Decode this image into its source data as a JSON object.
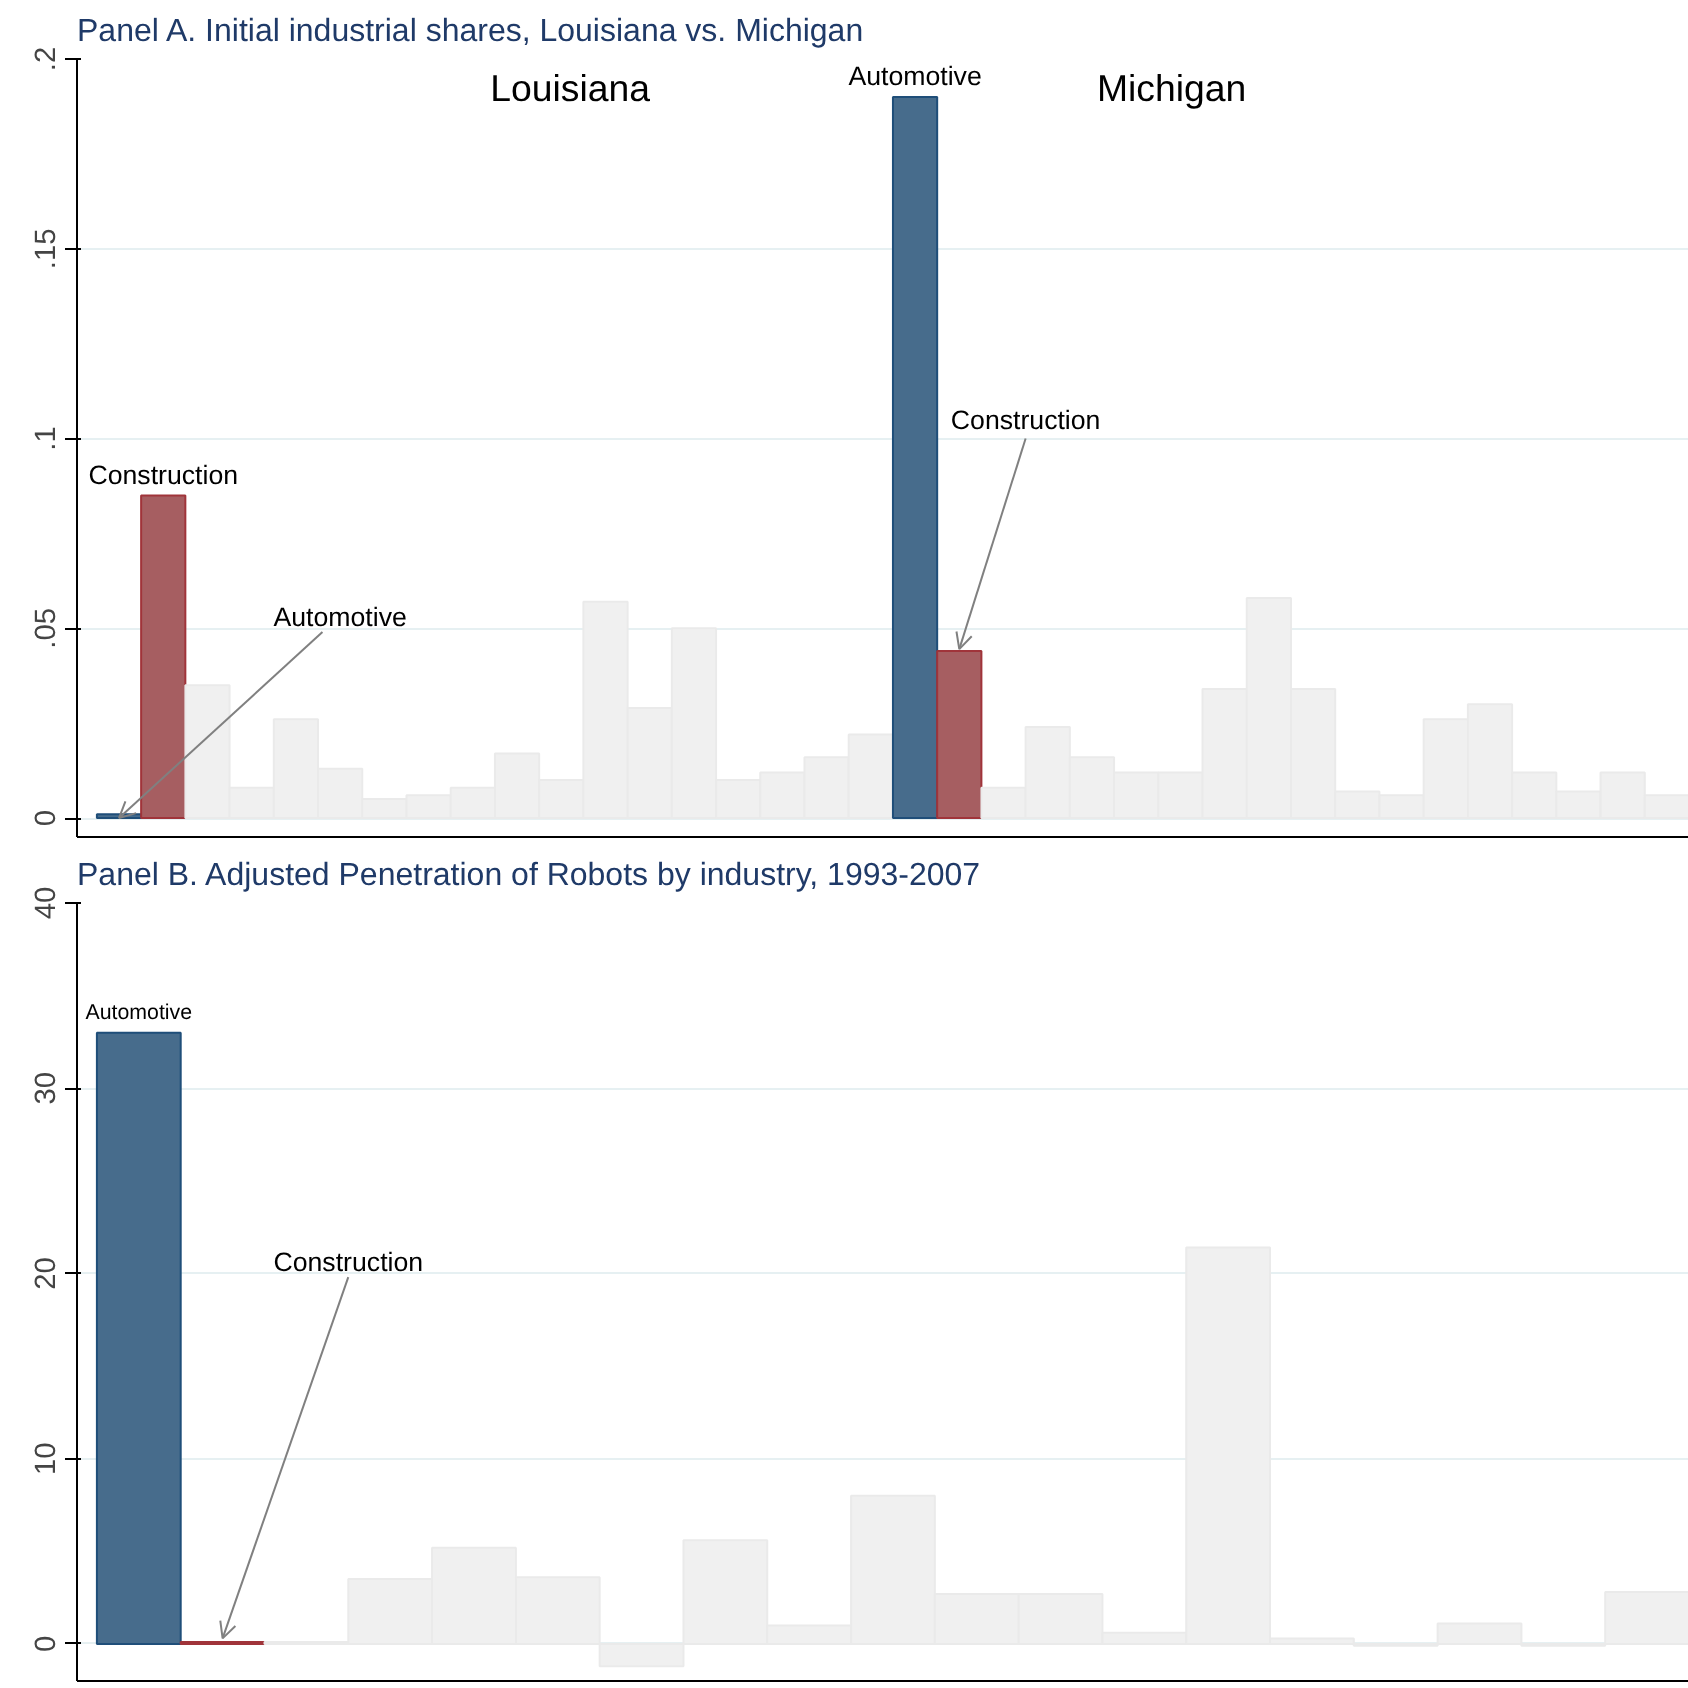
{
  "chart_data": [
    {
      "type": "bar",
      "title": "Panel A. Initial industrial shares, Louisiana vs. Michigan",
      "categories": [
        null,
        null,
        null,
        null,
        null,
        null,
        null,
        null,
        null,
        null,
        null,
        null,
        null,
        null,
        null,
        null,
        null,
        null,
        null,
        null,
        null,
        null,
        null,
        null,
        null,
        null,
        null,
        null,
        null,
        null,
        null,
        null,
        null,
        null,
        null,
        null
      ],
      "values": [
        0.001,
        0.085,
        0.035,
        0.008,
        0.026,
        0.013,
        0.005,
        0.006,
        0.008,
        0.017,
        0.01,
        0.057,
        0.029,
        0.05,
        0.01,
        0.012,
        0.016,
        0.022,
        0.19,
        0.044,
        0.008,
        0.024,
        0.016,
        0.012,
        0.012,
        0.034,
        0.058,
        0.034,
        0.007,
        0.006,
        0.026,
        0.03,
        0.012,
        0.007,
        0.012,
        0.006
      ],
      "colors": [
        "#476c8c",
        "#a65e61",
        "#f0f0f0",
        "#f0f0f0",
        "#f0f0f0",
        "#f0f0f0",
        "#f0f0f0",
        "#f0f0f0",
        "#f0f0f0",
        "#f0f0f0",
        "#f0f0f0",
        "#f0f0f0",
        "#f0f0f0",
        "#f0f0f0",
        "#f0f0f0",
        "#f0f0f0",
        "#f0f0f0",
        "#f0f0f0",
        "#476c8c",
        "#a65e61",
        "#f0f0f0",
        "#f0f0f0",
        "#f0f0f0",
        "#f0f0f0",
        "#f0f0f0",
        "#f0f0f0",
        "#f0f0f0",
        "#f0f0f0",
        "#f0f0f0",
        "#f0f0f0",
        "#f0f0f0",
        "#f0f0f0",
        "#f0f0f0",
        "#f0f0f0",
        "#f0f0f0",
        "#f0f0f0"
      ],
      "ylim": [
        -0.005,
        0.2
      ],
      "yticks": [
        0,
        {
          "value": 0.05,
          "label": ".05"
        },
        {
          "value": 0.1,
          "label": ".1"
        },
        {
          "value": 0.15,
          "label": ".15"
        },
        {
          "value": 0.2,
          "label": ".2"
        }
      ],
      "grid": "y",
      "tick_labels": "y",
      "annotations": [
        "Louisiana",
        "Michigan",
        "Automotive",
        "Construction",
        "Automotive",
        "Construction"
      ]
    },
    {
      "type": "bar",
      "title": "Panel B. Adjusted Penetration of Robots by industry, 1993-2007",
      "categories": [
        null,
        null,
        null,
        null,
        null,
        null,
        null,
        null,
        null,
        null,
        null,
        null,
        null,
        null,
        null,
        null,
        null,
        null,
        null
      ],
      "values": [
        33.0,
        0.1,
        0.1,
        3.5,
        5.2,
        3.6,
        -1.2,
        5.6,
        1.0,
        8.0,
        2.7,
        2.7,
        0.6,
        21.4,
        0.3,
        -0.1,
        1.1,
        -0.1,
        2.8
      ],
      "colors": [
        "#476c8c",
        "#a65e61",
        "#f0f0f0",
        "#f0f0f0",
        "#f0f0f0",
        "#f0f0f0",
        "#f0f0f0",
        "#f0f0f0",
        "#f0f0f0",
        "#f0f0f0",
        "#f0f0f0",
        "#f0f0f0",
        "#f0f0f0",
        "#f0f0f0",
        "#f0f0f0",
        "#f0f0f0",
        "#f0f0f0",
        "#f0f0f0",
        "#f0f0f0"
      ],
      "ylim": [
        -2,
        40
      ],
      "yticks": [
        0,
        10,
        20,
        30,
        40
      ],
      "grid": "y",
      "tick_labels": "y",
      "annotations": [
        "Automotive",
        "Construction"
      ]
    }
  ]
}
